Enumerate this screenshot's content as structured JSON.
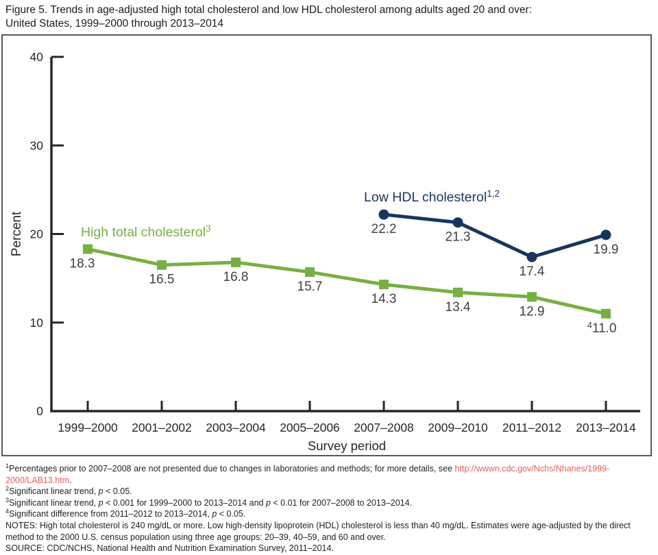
{
  "title": {
    "line1": "Figure 5. Trends in age-adjusted high total cholesterol and low HDL cholesterol among adults aged 20 and over:",
    "line2": "United States, 1999–2000 through 2013–2014"
  },
  "colors": {
    "green": "#76b043",
    "navy": "#17365d",
    "link_red": "#ee5c5c",
    "axis": "#262626",
    "label_text": "#414042",
    "box_border": "#57585a"
  },
  "chart_data": {
    "type": "line",
    "xlabel": "Survey period",
    "ylabel": "Percent",
    "ylim": [
      0,
      40
    ],
    "yticks": [
      0,
      10,
      20,
      30,
      40
    ],
    "grid": false,
    "legend_position": "inline-labels",
    "categories": [
      "1999–2000",
      "2001–2002",
      "2003–2004",
      "2005–2006",
      "2007–2008",
      "2009–2010",
      "2011–2012",
      "2013–2014"
    ],
    "series": [
      {
        "name": "High total cholesterol",
        "name_sup": "3",
        "color_key": "green",
        "marker": "square",
        "points": [
          {
            "period": "1999–2000",
            "value": 18.3,
            "label": "18.3",
            "label_dx": -8
          },
          {
            "period": "2001–2002",
            "value": 16.5,
            "label": "16.5"
          },
          {
            "period": "2003–2004",
            "value": 16.8,
            "label": "16.8"
          },
          {
            "period": "2005–2006",
            "value": 15.7,
            "label": "15.7"
          },
          {
            "period": "2007–2008",
            "value": 14.3,
            "label": "14.3"
          },
          {
            "period": "2009–2010",
            "value": 13.4,
            "label": "13.4"
          },
          {
            "period": "2011–2012",
            "value": 12.9,
            "label": "12.9"
          },
          {
            "period": "2013–2014",
            "value": 11.0,
            "label": "11.0",
            "label_sup_prefix": "4",
            "label_dx": -6
          }
        ]
      },
      {
        "name": "Low HDL cholesterol",
        "name_sup": "1,2",
        "color_key": "navy",
        "marker": "circle",
        "points": [
          {
            "period": "2007–2008",
            "value": 22.2,
            "label": "22.2"
          },
          {
            "period": "2009–2010",
            "value": 21.3,
            "label": "21.3"
          },
          {
            "period": "2011–2012",
            "value": 17.4,
            "label": "17.4"
          },
          {
            "period": "2013–2014",
            "value": 19.9,
            "label": "19.9"
          }
        ]
      }
    ]
  },
  "footnotes": {
    "lines": [
      [
        {
          "sup": "1"
        },
        {
          "t": "Percentages prior to 2007–2008 are not presented due to changes in laboratories and methods; for more details, see "
        },
        {
          "t": "http://wwwn.cdc.gov/Nchs/Nhanes/1999-",
          "style": "link"
        },
        {
          "br": true
        },
        {
          "t": "2000/LAB13.htm",
          "style": "link"
        },
        {
          "t": "."
        }
      ],
      [
        {
          "sup": "2"
        },
        {
          "t": "Significant linear trend, "
        },
        {
          "t": "p",
          "style": "italic"
        },
        {
          "t": " < 0.05."
        }
      ],
      [
        {
          "sup": "3"
        },
        {
          "t": "Significant linear trend, "
        },
        {
          "t": "p",
          "style": "italic"
        },
        {
          "t": " < 0.001 for 1999–2000 to 2013–2014 and "
        },
        {
          "t": "p",
          "style": "italic"
        },
        {
          "t": " < 0.01 for 2007–2008 to 2013–2014."
        }
      ],
      [
        {
          "sup": "4"
        },
        {
          "t": "Significant difference from 2011–2012 to 2013–2014, "
        },
        {
          "t": "p",
          "style": "italic"
        },
        {
          "t": " < 0.05."
        }
      ],
      [
        {
          "t": "NOTES: High total cholesterol is 240 mg/dL or more. Low high-density lipoprotein (HDL) cholesterol is less than 40 mg/dL. Estimates were age-adjusted by the direct method to the 2000 U.S. census population using three age groups: 20–39, 40–59, and 60 and over."
        }
      ],
      [
        {
          "t": "SOURCE: CDC/NCHS, National Health and Nutrition Examination Survey, 2011–2014."
        }
      ]
    ]
  }
}
